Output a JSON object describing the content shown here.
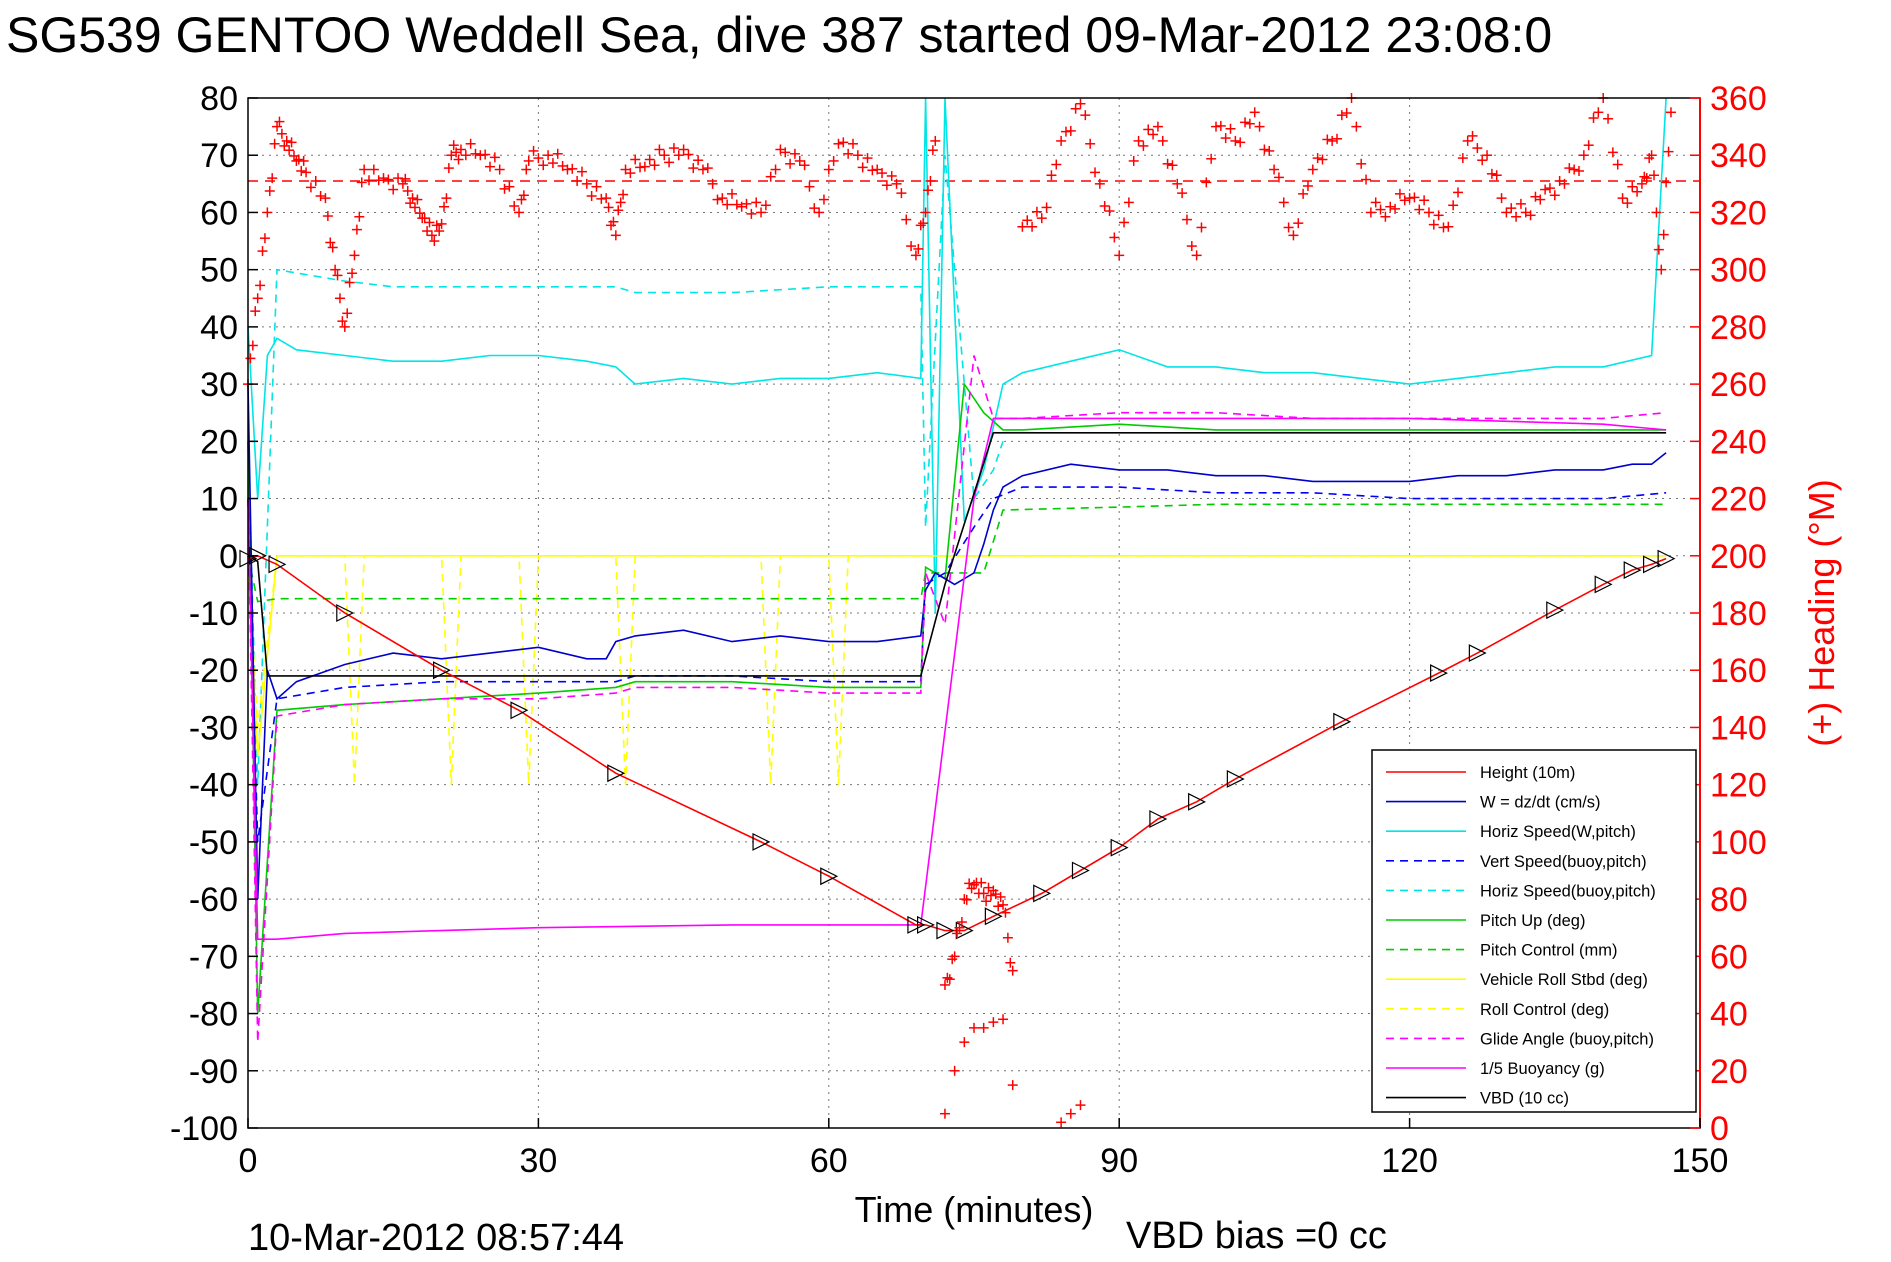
{
  "chart_data": {
    "type": "line",
    "title": "SG539 GENTOO Weddell Sea, dive 387 started 09-Mar-2012 23:08:0",
    "xlabel": "Time (minutes)",
    "ylabel_right": "(+) Heading (°M)",
    "footer_left": "10-Mar-2012 08:57:44",
    "footer_right": "VBD bias =0 cc",
    "xlim": [
      0,
      150
    ],
    "ylim_left": [
      -100,
      80
    ],
    "ylim_right": [
      0,
      360
    ],
    "x_ticks": [
      "0",
      "30",
      "60",
      "90",
      "120",
      "150"
    ],
    "y_ticks_left": [
      "80",
      "70",
      "60",
      "50",
      "40",
      "30",
      "20",
      "10",
      "0",
      "-10",
      "-20",
      "-30",
      "-40",
      "-50",
      "-60",
      "-70",
      "-80",
      "-90",
      "-100"
    ],
    "y_ticks_right": [
      "360",
      "340",
      "320",
      "300",
      "280",
      "260",
      "240",
      "220",
      "200",
      "180",
      "160",
      "140",
      "120",
      "100",
      "80",
      "60",
      "40",
      "20",
      "0"
    ],
    "grid": true,
    "legend_position": "bottom-right",
    "heading_reference": 331,
    "series": [
      {
        "name": "Height (10m)",
        "color": "#ff0000",
        "style": "solid",
        "marker": "triangle",
        "x": [
          0,
          1,
          3,
          10,
          20,
          28,
          38,
          53,
          60,
          69,
          70,
          72,
          74,
          77,
          82,
          86,
          90,
          94,
          98,
          102,
          113,
          123,
          127,
          135,
          140,
          143,
          145,
          146.5
        ],
        "y": [
          -0.5,
          0,
          -1.5,
          -10,
          -20,
          -27,
          -38,
          -50,
          -56,
          -64.5,
          -64.5,
          -65.5,
          -65.5,
          -63,
          -59,
          -55,
          -51,
          -46,
          -43,
          -39,
          -29,
          -20.5,
          -17,
          -9.5,
          -5,
          -2.5,
          -1.5,
          -0.5
        ]
      },
      {
        "name": "W = dz/dt (cm/s)",
        "color": "#0000cc",
        "style": "solid",
        "x": [
          0,
          1,
          2,
          3,
          5,
          10,
          15,
          20,
          25,
          30,
          35,
          37,
          38,
          40,
          45,
          50,
          55,
          60,
          65,
          69.5,
          70,
          71,
          73,
          75,
          76,
          77,
          78,
          80,
          85,
          90,
          95,
          100,
          105,
          110,
          115,
          120,
          125,
          130,
          135,
          140,
          143,
          145,
          146.5
        ],
        "y": [
          30,
          -60,
          -20,
          -25,
          -22,
          -19,
          -17,
          -18,
          -17,
          -16,
          -18,
          -18,
          -15,
          -14,
          -13,
          -15,
          -14,
          -15,
          -15,
          -14,
          -6,
          -3,
          -5,
          -3,
          2,
          8,
          12,
          14,
          16,
          15,
          15,
          14,
          14,
          13,
          13,
          13,
          14,
          14,
          15,
          15,
          16,
          16,
          18
        ]
      },
      {
        "name": "Horiz Speed(W,pitch)",
        "color": "#00e5e5",
        "style": "solid",
        "x": [
          0,
          1,
          2,
          3,
          5,
          10,
          15,
          20,
          25,
          30,
          35,
          38,
          40,
          45,
          50,
          55,
          60,
          65,
          69.5,
          70,
          71,
          72,
          74,
          76,
          78,
          80,
          85,
          90,
          95,
          100,
          105,
          110,
          115,
          120,
          125,
          130,
          135,
          140,
          145,
          146.5
        ],
        "y": [
          40,
          10,
          35,
          38,
          36,
          35,
          34,
          34,
          35,
          35,
          34,
          33,
          30,
          31,
          30,
          31,
          31,
          32,
          31,
          80,
          -10,
          80,
          6,
          15,
          30,
          32,
          34,
          36,
          33,
          33,
          32,
          32,
          31,
          30,
          31,
          32,
          33,
          33,
          35,
          80
        ]
      },
      {
        "name": "Vert Speed(buoy,pitch)",
        "color": "#0000ff",
        "style": "dashed",
        "x": [
          0,
          1,
          3,
          10,
          20,
          30,
          38,
          40,
          50,
          60,
          69.5,
          70,
          72,
          75,
          77,
          80,
          90,
          100,
          110,
          120,
          130,
          140,
          146.5
        ],
        "y": [
          10,
          -50,
          -25,
          -23,
          -22,
          -22,
          -22,
          -21,
          -21,
          -22,
          -22,
          -5,
          -3,
          5,
          10,
          12,
          12,
          11,
          11,
          10,
          10,
          10,
          11
        ]
      },
      {
        "name": "Horiz Speed(buoy,pitch)",
        "color": "#00e5e5",
        "style": "dashed",
        "x": [
          0,
          1,
          3,
          10,
          15,
          20,
          30,
          38,
          40,
          50,
          60,
          69.5,
          70,
          72,
          75,
          77,
          78
        ],
        "y": [
          20,
          -40,
          50,
          48,
          47,
          47,
          47,
          47,
          46,
          46,
          47,
          47,
          5,
          70,
          10,
          15,
          20
        ]
      },
      {
        "name": "Pitch Up (deg)",
        "color": "#00cc00",
        "style": "solid",
        "x": [
          0,
          1,
          3,
          10,
          20,
          30,
          38,
          40,
          50,
          60,
          69.5,
          70,
          72,
          74,
          76,
          78,
          80,
          90,
          100,
          110,
          120,
          130,
          140,
          146.5
        ],
        "y": [
          20,
          -80,
          -27,
          -26,
          -25,
          -24,
          -23,
          -22,
          -22,
          -23,
          -23,
          -2,
          -4,
          30,
          25,
          22,
          22,
          23,
          22,
          22,
          22,
          22,
          22,
          22
        ]
      },
      {
        "name": "Pitch Control (mm)",
        "color": "#00cc00",
        "style": "dashed",
        "x": [
          0,
          1,
          3,
          69.5,
          70,
          76,
          78,
          90,
          100,
          146.5
        ],
        "y": [
          0,
          -8,
          -7.5,
          -7.5,
          -3,
          -3,
          8,
          8.5,
          9,
          9
        ]
      },
      {
        "name": "Vehicle Roll Stbd (deg)",
        "color": "#ffff00",
        "style": "solid",
        "x": [
          0,
          1,
          3,
          10,
          20,
          30,
          38,
          40,
          50,
          60,
          70,
          75,
          78,
          80,
          90,
          100,
          110,
          120,
          130,
          140,
          146.5
        ],
        "y": [
          0,
          -35,
          0,
          0,
          0,
          0,
          0,
          0,
          0,
          0,
          0,
          0,
          0,
          0,
          0,
          0,
          0,
          0,
          0,
          0,
          0
        ]
      },
      {
        "name": "Roll Control (deg)",
        "color": "#ffff00",
        "style": "dashed",
        "x": [
          0,
          1,
          3,
          10,
          11,
          12,
          20,
          21,
          22,
          28,
          29,
          30,
          38,
          39,
          40,
          53,
          54,
          55,
          60,
          61,
          62,
          146.5
        ],
        "y": [
          0,
          -30,
          0,
          0,
          -40,
          0,
          0,
          -40,
          0,
          0,
          -40,
          0,
          0,
          -40,
          0,
          0,
          -40,
          0,
          0,
          -40,
          0,
          0
        ]
      },
      {
        "name": "Glide Angle (buoy,pitch)",
        "color": "#ff00ff",
        "style": "dashed",
        "x": [
          0,
          1,
          3,
          10,
          20,
          30,
          38,
          40,
          50,
          60,
          69.5,
          70,
          72,
          75,
          77,
          80,
          90,
          100,
          110,
          120,
          130,
          140,
          146.5
        ],
        "y": [
          10,
          -85,
          -28,
          -26,
          -25,
          -25,
          -24,
          -23,
          -23,
          -24,
          -24,
          -3,
          -12,
          35,
          24,
          24,
          25,
          25,
          24,
          24,
          24,
          24,
          25
        ]
      },
      {
        "name": "1/5 Buoyancy (g)",
        "color": "#ff00ff",
        "style": "solid",
        "x": [
          0,
          1,
          3,
          10,
          30,
          50,
          69.5,
          75,
          77,
          80,
          100,
          120,
          140,
          146.5
        ],
        "y": [
          10,
          -67,
          -67,
          -66,
          -65,
          -64.5,
          -64.5,
          10,
          24,
          24,
          24,
          24,
          23,
          22
        ]
      },
      {
        "name": "VBD (10 cc)",
        "color": "#000000",
        "style": "solid",
        "x": [
          0,
          1,
          2,
          69.5,
          72,
          77,
          146.5
        ],
        "y": [
          0,
          -1,
          -21,
          -21,
          -5,
          21.5,
          21.5
        ]
      }
    ],
    "heading": {
      "name": "(+) Heading",
      "color": "#ff0000",
      "marker": "+",
      "axis": "right",
      "x": [
        0,
        1,
        2,
        3,
        4,
        5,
        6,
        8,
        9,
        10,
        11,
        12,
        14,
        16,
        17,
        18,
        19,
        20,
        21,
        22,
        24,
        26,
        28,
        29,
        31,
        33,
        35,
        37,
        38,
        39,
        41,
        43,
        45,
        47,
        49,
        51,
        53,
        55,
        57,
        59,
        61,
        63,
        65,
        67,
        69,
        70,
        71,
        72,
        73,
        74,
        75,
        76,
        77,
        78,
        79,
        80,
        82,
        84,
        86,
        88,
        90,
        92,
        94,
        96,
        98,
        100,
        102,
        104,
        106,
        108,
        110,
        112,
        114,
        116,
        118,
        120,
        122,
        124,
        126,
        128,
        130,
        132,
        134,
        136,
        138,
        140,
        142,
        144,
        145,
        146,
        147
      ],
      "y": [
        260,
        290,
        320,
        350,
        345,
        338,
        334,
        325,
        300,
        280,
        305,
        335,
        332,
        330,
        325,
        318,
        312,
        316,
        340,
        342,
        340,
        335,
        320,
        338,
        340,
        335,
        330,
        325,
        312,
        335,
        336,
        340,
        342,
        335,
        325,
        322,
        320,
        342,
        338,
        320,
        344,
        340,
        335,
        330,
        305,
        320,
        345,
        50,
        60,
        80,
        85,
        82,
        83,
        78,
        55,
        315,
        318,
        345,
        358,
        330,
        305,
        345,
        350,
        330,
        305,
        350,
        345,
        355,
        335,
        312,
        335,
        345,
        360,
        320,
        322,
        325,
        320,
        315,
        345,
        340,
        320,
        320,
        328,
        330,
        340,
        360,
        325,
        330,
        340,
        300,
        355
      ]
    },
    "heading_wrap": {
      "x": [
        72,
        73,
        74,
        75,
        76,
        77,
        78,
        79,
        84,
        85,
        86
      ],
      "y": [
        5,
        20,
        30,
        35,
        35,
        37,
        38,
        15,
        2,
        5,
        8
      ]
    }
  }
}
